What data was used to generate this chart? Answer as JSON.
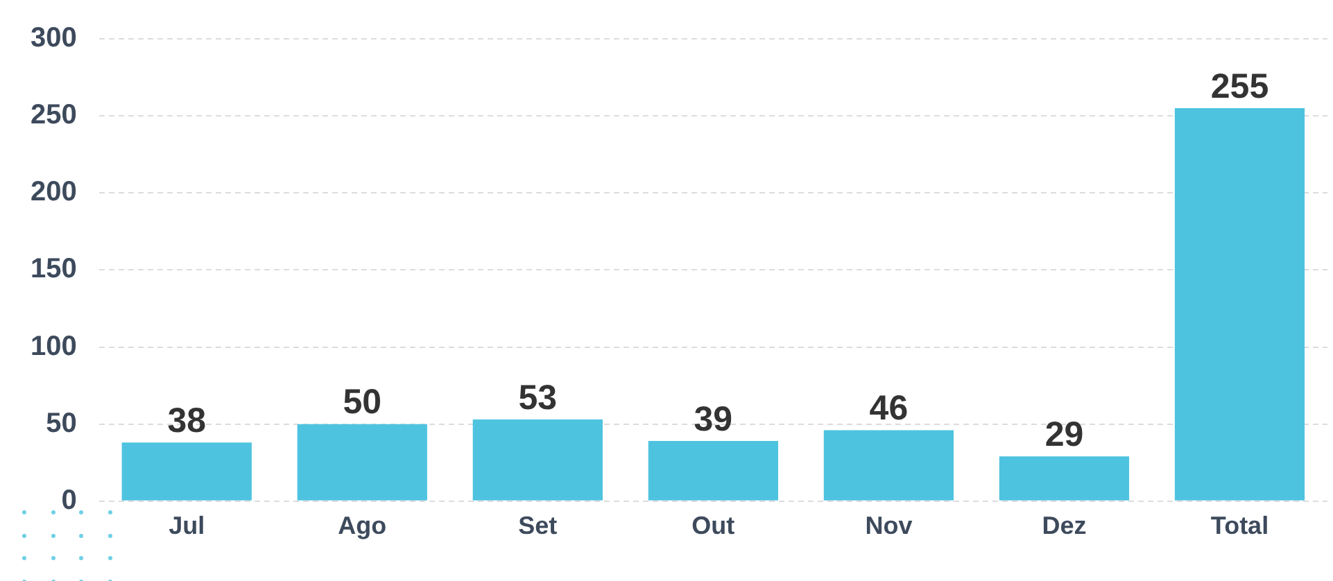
{
  "chart_data": {
    "type": "bar",
    "categories": [
      "Jul",
      "Ago",
      "Set",
      "Out",
      "Nov",
      "Dez",
      "Total"
    ],
    "values": [
      38,
      50,
      53,
      39,
      46,
      29,
      255
    ],
    "color": "#4ec3e0",
    "ylim": [
      0,
      300
    ],
    "yticks": [
      0,
      50,
      100,
      150,
      200,
      250,
      300
    ],
    "grid": "y",
    "data_labels": true
  }
}
